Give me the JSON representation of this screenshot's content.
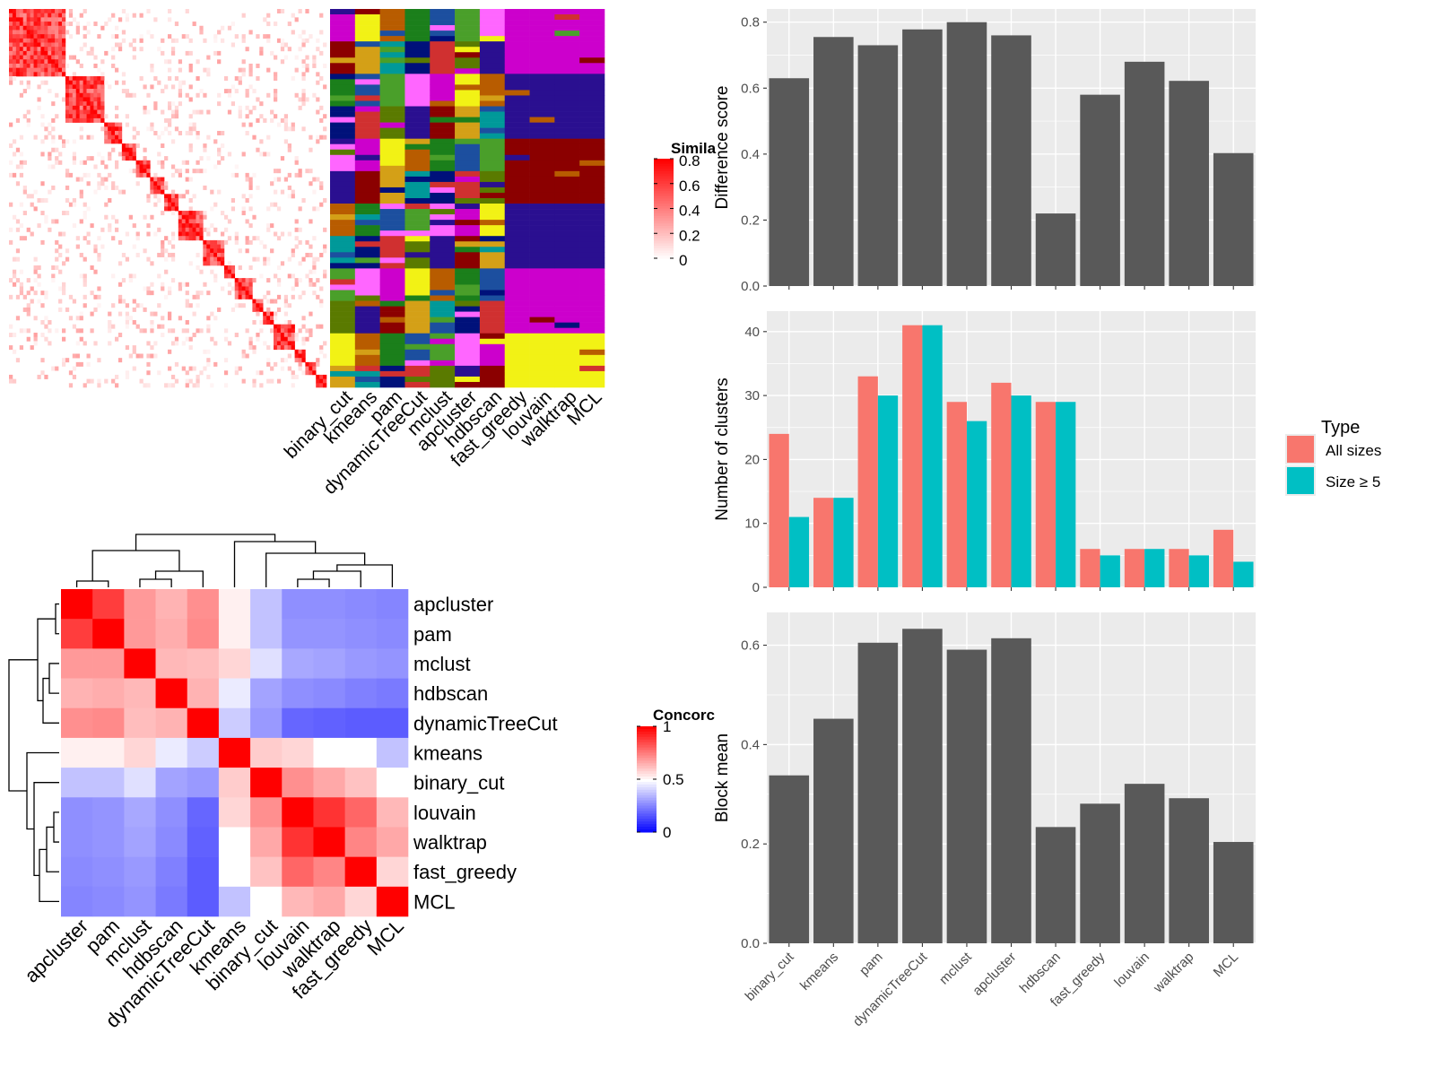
{
  "similarity_legend": {
    "title": "Simila",
    "ticks": [
      "0.8",
      "0.6",
      "0.4",
      "0.2",
      "0"
    ]
  },
  "concordance_legend": {
    "title": "Concorc",
    "ticks": [
      "1",
      "0.5",
      "0"
    ]
  },
  "legend_type": {
    "title": "Type",
    "items": [
      "All sizes",
      "Size ≥ 5"
    ],
    "colors": [
      "#f8766d",
      "#00bfc4"
    ]
  },
  "colors": {
    "panel_bg": "#ebebeb",
    "grid": "#ffffff",
    "bar": "#595959",
    "similarity_high": "#ff0000",
    "concordance_low": "#0000ff",
    "concordance_high": "#ff0000"
  },
  "chart_data": [
    {
      "type": "heatmap",
      "name": "similarity_matrix",
      "value_range": [
        0,
        0.8
      ],
      "column_labels": [
        "binary_cut",
        "kmeans",
        "pam",
        "dynamicTreeCut",
        "mclust",
        "apcluster",
        "hdbscan",
        "fast_greedy",
        "louvain",
        "walktrap",
        "MCL"
      ],
      "cluster_palette": [
        "#cc00cc",
        "#2a0f90",
        "#f2f215",
        "#8b0000",
        "#b85c00",
        "#d4a017",
        "#1b7f1b",
        "#009999",
        "#1c4f9f",
        "#00117a",
        "#4a9f2a",
        "#d03030",
        "#ff66ff",
        "#5a7a00"
      ]
    },
    {
      "type": "heatmap",
      "name": "concordance",
      "labels": [
        "apcluster",
        "pam",
        "mclust",
        "hdbscan",
        "dynamicTreeCut",
        "kmeans",
        "binary_cut",
        "louvain",
        "walktrap",
        "fast_greedy",
        "MCL"
      ],
      "value_range": [
        0,
        1
      ],
      "values": [
        [
          1.0,
          0.88,
          0.7,
          0.65,
          0.72,
          0.53,
          0.38,
          0.28,
          0.28,
          0.27,
          0.26
        ],
        [
          0.88,
          1.0,
          0.7,
          0.66,
          0.73,
          0.53,
          0.38,
          0.29,
          0.29,
          0.28,
          0.27
        ],
        [
          0.7,
          0.7,
          1.0,
          0.64,
          0.63,
          0.58,
          0.44,
          0.33,
          0.32,
          0.3,
          0.29
        ],
        [
          0.65,
          0.66,
          0.64,
          1.0,
          0.65,
          0.46,
          0.32,
          0.28,
          0.27,
          0.25,
          0.24
        ],
        [
          0.72,
          0.73,
          0.63,
          0.65,
          1.0,
          0.4,
          0.3,
          0.2,
          0.19,
          0.18,
          0.18
        ],
        [
          0.53,
          0.53,
          0.58,
          0.46,
          0.4,
          1.0,
          0.6,
          0.58,
          0.5,
          0.5,
          0.38
        ],
        [
          0.38,
          0.38,
          0.44,
          0.32,
          0.3,
          0.6,
          1.0,
          0.72,
          0.67,
          0.62,
          0.5
        ],
        [
          0.28,
          0.29,
          0.33,
          0.28,
          0.2,
          0.58,
          0.72,
          1.0,
          0.9,
          0.8,
          0.64
        ],
        [
          0.28,
          0.29,
          0.32,
          0.27,
          0.19,
          0.5,
          0.67,
          0.9,
          1.0,
          0.74,
          0.67
        ],
        [
          0.27,
          0.28,
          0.3,
          0.25,
          0.18,
          0.5,
          0.62,
          0.8,
          0.74,
          1.0,
          0.58
        ],
        [
          0.26,
          0.27,
          0.29,
          0.24,
          0.18,
          0.38,
          0.5,
          0.64,
          0.67,
          0.58,
          1.0
        ]
      ]
    },
    {
      "type": "bar",
      "name": "difference_score",
      "categories": [
        "binary_cut",
        "kmeans",
        "pam",
        "dynamicTreeCut",
        "mclust",
        "apcluster",
        "hdbscan",
        "fast_greedy",
        "louvain",
        "walktrap",
        "MCL"
      ],
      "values": [
        0.63,
        0.755,
        0.73,
        0.778,
        0.8,
        0.76,
        0.22,
        0.58,
        0.68,
        0.622,
        0.403
      ],
      "ylabel": "Difference score",
      "ylim": [
        0,
        0.84
      ],
      "yticks": [
        0.0,
        0.2,
        0.4,
        0.6,
        0.8
      ],
      "ytick_labels": [
        "0.0",
        "0.2",
        "0.4",
        "0.6",
        "0.8"
      ],
      "show_x_labels": false
    },
    {
      "type": "bar",
      "name": "number_of_clusters",
      "categories": [
        "binary_cut",
        "kmeans",
        "pam",
        "dynamicTreeCut",
        "mclust",
        "apcluster",
        "hdbscan",
        "fast_greedy",
        "louvain",
        "walktrap",
        "MCL"
      ],
      "series": [
        {
          "name": "All sizes",
          "values": [
            24,
            14,
            33,
            41,
            29,
            32,
            29,
            6,
            6,
            6,
            9
          ]
        },
        {
          "name": "Size ≥ 5",
          "values": [
            11,
            14,
            30,
            41,
            26,
            30,
            29,
            5,
            6,
            5,
            4
          ]
        }
      ],
      "ylabel": "Number of clusters",
      "ylim": [
        0,
        43.2
      ],
      "yticks": [
        0,
        10,
        20,
        30,
        40
      ],
      "ytick_labels": [
        "0",
        "10",
        "20",
        "30",
        "40"
      ],
      "show_x_labels": false
    },
    {
      "type": "bar",
      "name": "block_mean",
      "categories": [
        "binary_cut",
        "kmeans",
        "pam",
        "dynamicTreeCut",
        "mclust",
        "apcluster",
        "hdbscan",
        "fast_greedy",
        "louvain",
        "walktrap",
        "MCL"
      ],
      "values": [
        0.338,
        0.452,
        0.605,
        0.633,
        0.591,
        0.614,
        0.234,
        0.281,
        0.321,
        0.292,
        0.204
      ],
      "ylabel": "Block mean",
      "ylim": [
        0,
        0.666
      ],
      "yticks": [
        0.0,
        0.2,
        0.4,
        0.6
      ],
      "ytick_labels": [
        "0.0",
        "0.2",
        "0.4",
        "0.6"
      ],
      "show_x_labels": true
    }
  ]
}
